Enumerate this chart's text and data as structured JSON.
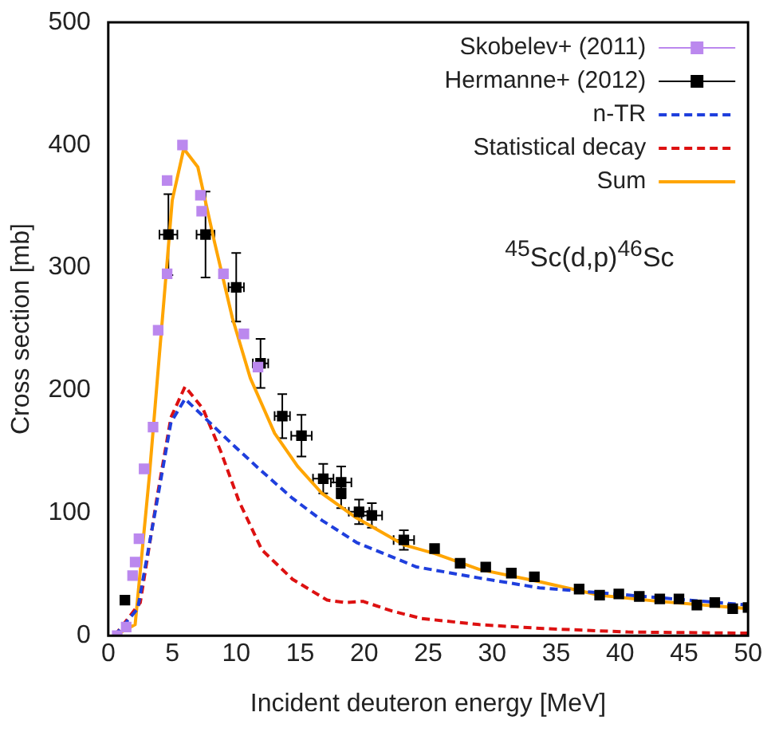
{
  "chart_data": {
    "type": "line",
    "xlabel": "Incident deuteron energy [MeV]",
    "ylabel": "Cross section [mb]",
    "xlim": [
      0,
      50
    ],
    "xticks": [
      0,
      5,
      10,
      15,
      20,
      25,
      30,
      35,
      40,
      45,
      50
    ],
    "ylim": [
      0,
      500
    ],
    "yticks": [
      0,
      100,
      200,
      300,
      400,
      500
    ],
    "grid": false,
    "legend": "top right",
    "annotations": [
      {
        "text": "$^{45}$Sc(d,p)$^{46}$Sc"
      }
    ],
    "series": [
      {
        "name": "Skobelev+ (2011)",
        "type": "scatter",
        "marker": "square",
        "color": "#bb88ee",
        "x": [
          0.7,
          1.4,
          1.9,
          2.1,
          2.4,
          2.8,
          3.5,
          3.9,
          4.6,
          4.6,
          5.8,
          7.2,
          7.3,
          9,
          10.6,
          11.7
        ],
        "values": [
          0,
          7,
          49,
          60,
          79,
          136,
          170,
          249,
          295,
          371,
          400,
          359,
          346,
          295,
          246,
          219
        ]
      },
      {
        "name": "Hermanne+ (2012)",
        "type": "scatter",
        "marker": "square",
        "color": "#000000",
        "x": [
          1.3,
          4.7,
          7.6,
          10,
          11.9,
          13.6,
          15.1,
          16.8,
          18.2,
          18.2,
          19.6,
          20.6,
          23.1,
          25.5,
          27.5,
          29.5,
          31.5,
          33.3,
          36.8,
          38.4,
          39.9,
          41.5,
          43.1,
          44.6,
          46,
          47.4,
          48.8,
          50
        ],
        "values": [
          29,
          327,
          327,
          284,
          222,
          179,
          163,
          128,
          125,
          116,
          101,
          98,
          78,
          71,
          59,
          56,
          51,
          48,
          38,
          33,
          34,
          32,
          30,
          30,
          25,
          27,
          22,
          23
        ],
        "errors": [
          null,
          33,
          35,
          28,
          20,
          18,
          17,
          12,
          13,
          12,
          10,
          10,
          8,
          null,
          null,
          null,
          null,
          null,
          null,
          null,
          null,
          null,
          null,
          null,
          null,
          null,
          null,
          null
        ],
        "xerrors": [
          null,
          0.7,
          0.7,
          0.6,
          0.6,
          0.6,
          0.8,
          0.8,
          0.8,
          null,
          0.8,
          0.8,
          0.8,
          null,
          null,
          null,
          null,
          null,
          null,
          null,
          null,
          null,
          null,
          null,
          null,
          null,
          null,
          null
        ]
      },
      {
        "name": "n-TR",
        "type": "line",
        "marker": "none",
        "line_style": "dashed",
        "color": "#1f3fdd",
        "x": [
          0.5,
          2.3,
          3.7,
          4.9,
          6,
          7.4,
          9.7,
          12,
          14.4,
          16.7,
          19.4,
          24.1,
          29,
          33.7,
          38.4,
          43,
          50
        ],
        "values": [
          0,
          22,
          103,
          174,
          193,
          179,
          156,
          134,
          112,
          94,
          76,
          56,
          47,
          39,
          35,
          31,
          25
        ]
      },
      {
        "name": "Statistical decay",
        "type": "line",
        "marker": "none",
        "line_style": "dashed",
        "color": "#dd1111",
        "x": [
          0.5,
          2.5,
          3.8,
          4.9,
          6,
          7.4,
          8.8,
          10.2,
          12,
          14.4,
          17.1,
          18.5,
          19.9,
          22.2,
          24.5,
          29,
          33.7,
          40.6,
          50
        ],
        "values": [
          0,
          27,
          112,
          178,
          203,
          185,
          150,
          110,
          70,
          46,
          29,
          27,
          28,
          20,
          14,
          9,
          6,
          3,
          2
        ]
      },
      {
        "name": "Sum",
        "type": "line",
        "marker": "none",
        "line_style": "solid",
        "color": "#ffa500",
        "x": [
          0.5,
          2.1,
          3.2,
          5,
          5.9,
          7,
          8.3,
          9.7,
          11.1,
          13,
          14.8,
          16.7,
          19.4,
          23.1,
          25.5,
          29,
          33.7,
          38.4,
          43,
          50
        ],
        "values": [
          0,
          9,
          129,
          355,
          397,
          382,
          321,
          259,
          210,
          165,
          138,
          116,
          96,
          74,
          67,
          54,
          44,
          33,
          28,
          22
        ]
      }
    ]
  }
}
